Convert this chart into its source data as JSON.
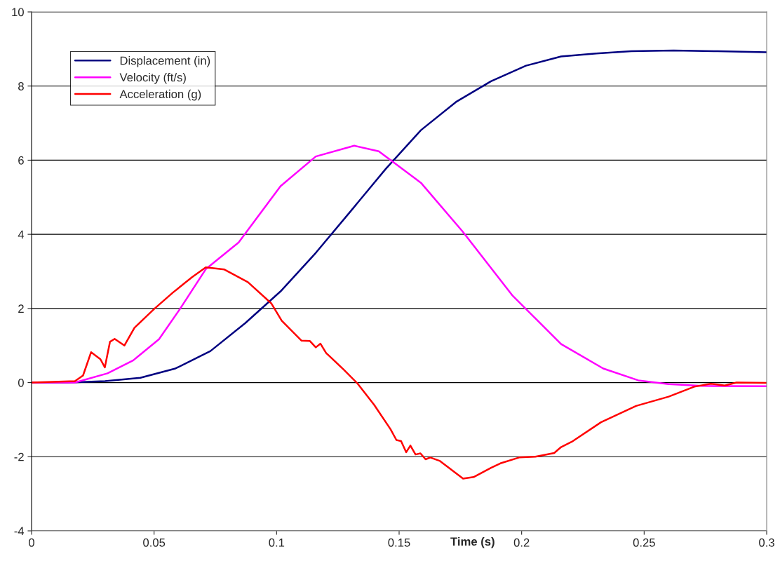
{
  "chart_data": {
    "type": "line",
    "xlabel": "Time (s)",
    "xlim": [
      0,
      0.3
    ],
    "xticks": [
      0,
      0.05,
      0.1,
      0.15,
      0.2,
      0.25,
      0.3
    ],
    "ylim": [
      -4,
      10
    ],
    "yticks": [
      -4,
      -2,
      0,
      2,
      4,
      6,
      8,
      10
    ],
    "grid": "y",
    "legend": "top left",
    "marker": "none",
    "line_style": "solid",
    "series": [
      {
        "name": "Displacement (in)",
        "color": "#000080",
        "x": [
          0,
          0.015,
          0.03,
          0.0444,
          0.0587,
          0.073,
          0.0873,
          0.1016,
          0.116,
          0.1303,
          0.1446,
          0.1589,
          0.1732,
          0.1875,
          0.2018,
          0.2161,
          0.2305,
          0.2448,
          0.262,
          0.28,
          0.3
        ],
        "values": [
          0,
          0,
          0.04,
          0.13,
          0.38,
          0.85,
          1.61,
          2.46,
          3.5,
          4.63,
          5.77,
          6.81,
          7.57,
          8.13,
          8.55,
          8.8,
          8.88,
          8.94,
          8.96,
          8.94,
          8.91
        ]
      },
      {
        "name": "Velocity (ft/s)",
        "color": "#ff00ff",
        "x": [
          0,
          0.0177,
          0.031,
          0.0415,
          0.052,
          0.0606,
          0.0711,
          0.0845,
          0.1016,
          0.116,
          0.1317,
          0.1417,
          0.1589,
          0.176,
          0.1961,
          0.2161,
          0.2333,
          0.2476,
          0.26,
          0.2734,
          0.3
        ],
        "values": [
          0,
          0,
          0.25,
          0.6,
          1.17,
          1.99,
          3.06,
          3.78,
          5.3,
          6.1,
          6.39,
          6.24,
          5.39,
          4.07,
          2.36,
          1.04,
          0.38,
          0.06,
          -0.04,
          -0.09,
          -0.1
        ]
      },
      {
        "name": "Acceleration (g)",
        "color": "#ff0000",
        "x": [
          0,
          0.0177,
          0.021,
          0.0243,
          0.0281,
          0.0299,
          0.032,
          0.0339,
          0.0379,
          0.042,
          0.0501,
          0.0577,
          0.0654,
          0.0711,
          0.0787,
          0.0883,
          0.0978,
          0.1021,
          0.1102,
          0.1136,
          0.116,
          0.1179,
          0.1202,
          0.1274,
          0.1331,
          0.1398,
          0.1465,
          0.1489,
          0.1508,
          0.1529,
          0.1546,
          0.1567,
          0.1587,
          0.1608,
          0.1627,
          0.1665,
          0.1761,
          0.1804,
          0.1875,
          0.1913,
          0.199,
          0.2056,
          0.2133,
          0.2161,
          0.2209,
          0.2324,
          0.2467,
          0.26,
          0.2705,
          0.2772,
          0.2829,
          0.2877,
          0.3
        ],
        "values": [
          0,
          0.04,
          0.19,
          0.82,
          0.63,
          0.41,
          1.1,
          1.18,
          1.0,
          1.48,
          1.99,
          2.43,
          2.84,
          3.11,
          3.05,
          2.71,
          2.14,
          1.67,
          1.13,
          1.12,
          0.95,
          1.05,
          0.8,
          0.35,
          -0.03,
          -0.6,
          -1.26,
          -1.55,
          -1.58,
          -1.88,
          -1.7,
          -1.94,
          -1.91,
          -2.07,
          -2.02,
          -2.11,
          -2.59,
          -2.55,
          -2.3,
          -2.18,
          -2.02,
          -2.0,
          -1.9,
          -1.74,
          -1.58,
          -1.07,
          -0.63,
          -0.38,
          -0.11,
          -0.03,
          -0.08,
          0.0,
          -0.01
        ]
      }
    ]
  }
}
